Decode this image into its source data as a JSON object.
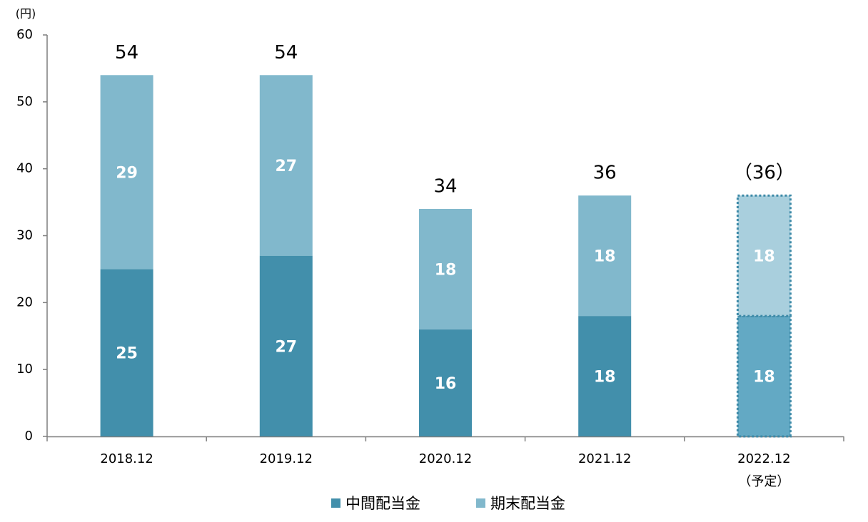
{
  "chart_data": {
    "type": "stacked-bar",
    "unit": "(円)",
    "categories": [
      "2018.12",
      "2019.12",
      "2020.12",
      "2021.12",
      "2022.12\n（予定）"
    ],
    "series": [
      {
        "name": "中間配当金",
        "color": "#428fab",
        "estimate_color": "#63a9c4",
        "values": [
          25,
          27,
          16,
          18,
          18
        ]
      },
      {
        "name": "期末配当金",
        "color": "#81b8cc",
        "estimate_color": "#a9cfdd",
        "values": [
          29,
          27,
          18,
          18,
          18
        ]
      }
    ],
    "totals": {
      "values": [
        54,
        54,
        34,
        36,
        36
      ],
      "value_labels": [
        "54",
        "54",
        "34",
        "36",
        "（36）"
      ]
    },
    "estimate": [
      false,
      false,
      false,
      false,
      true
    ],
    "ylim": [
      0,
      60
    ],
    "yticks": [
      0,
      10,
      20,
      30,
      40,
      50,
      60
    ],
    "grid": false,
    "legend": "bottom"
  }
}
